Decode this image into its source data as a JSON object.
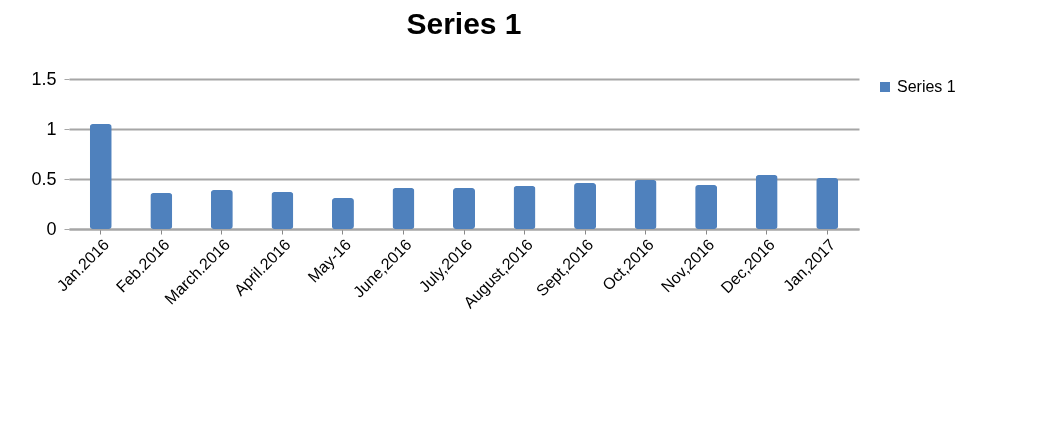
{
  "chart_data": {
    "type": "bar",
    "title": "Series 1",
    "categories": [
      "Jan.2016",
      "Feb.2016",
      "March.2016",
      "April.2016",
      "May-16",
      "June,2016",
      "July,2016",
      "August,2016",
      "Sept,2016",
      "Oct,2016",
      "Nov,2016",
      "Dec,2016",
      "Jan,2017"
    ],
    "series": [
      {
        "name": "Series 1",
        "color": "#4f81bd",
        "values": [
          1.05,
          0.36,
          0.39,
          0.37,
          0.31,
          0.41,
          0.41,
          0.43,
          0.46,
          0.49,
          0.44,
          0.54,
          0.51
        ]
      }
    ],
    "ylim": [
      0,
      1.5
    ],
    "yticks": [
      0,
      0.5,
      1,
      1.5
    ],
    "grid": "y",
    "legend": "right"
  }
}
